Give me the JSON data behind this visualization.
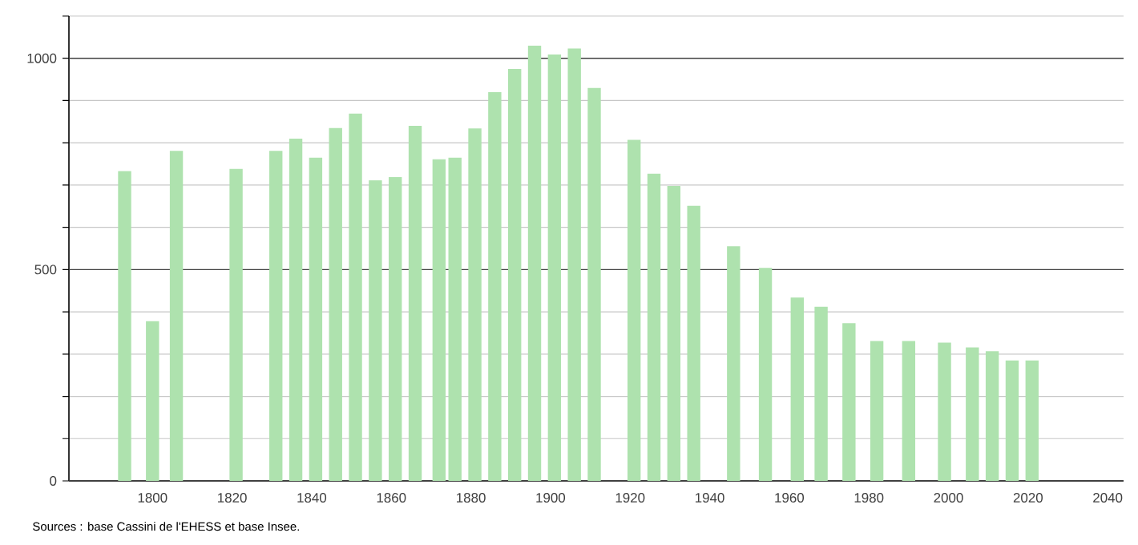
{
  "chart_data": {
    "type": "bar",
    "color": "#aee2ae",
    "x": [
      1793,
      1800,
      1806,
      1821,
      1831,
      1836,
      1841,
      1846,
      1851,
      1856,
      1861,
      1866,
      1872,
      1876,
      1881,
      1886,
      1891,
      1896,
      1901,
      1906,
      1911,
      1921,
      1926,
      1931,
      1936,
      1946,
      1954,
      1962,
      1968,
      1975,
      1982,
      1990,
      1999,
      2006,
      2011,
      2016,
      2021
    ],
    "values": [
      733,
      378,
      781,
      738,
      781,
      810,
      765,
      835,
      869,
      711,
      719,
      840,
      761,
      765,
      834,
      920,
      975,
      1030,
      1009,
      1023,
      930,
      807,
      727,
      698,
      651,
      555,
      504,
      434,
      412,
      373,
      331,
      331,
      327,
      316,
      307,
      285,
      285
    ],
    "xlim": [
      1779,
      2044
    ],
    "xticks": [
      1800,
      1820,
      1840,
      1860,
      1880,
      1900,
      1920,
      1940,
      1960,
      1980,
      2000,
      2020,
      2040
    ],
    "ylim": [
      0,
      1100
    ],
    "yticks": [
      0,
      {
        "value": 100,
        "label": null
      },
      {
        "value": 200,
        "label": null
      },
      {
        "value": 300,
        "label": null
      },
      {
        "value": 400,
        "label": null
      },
      500,
      {
        "value": 600,
        "label": null
      },
      {
        "value": 700,
        "label": null
      },
      {
        "value": 800,
        "label": null
      },
      {
        "value": 900,
        "label": null
      },
      1000,
      {
        "value": 1100,
        "label": null
      }
    ],
    "grid": "y",
    "annotations": [
      "Sources : base Cassini de l'EHESS et base Insee."
    ]
  }
}
